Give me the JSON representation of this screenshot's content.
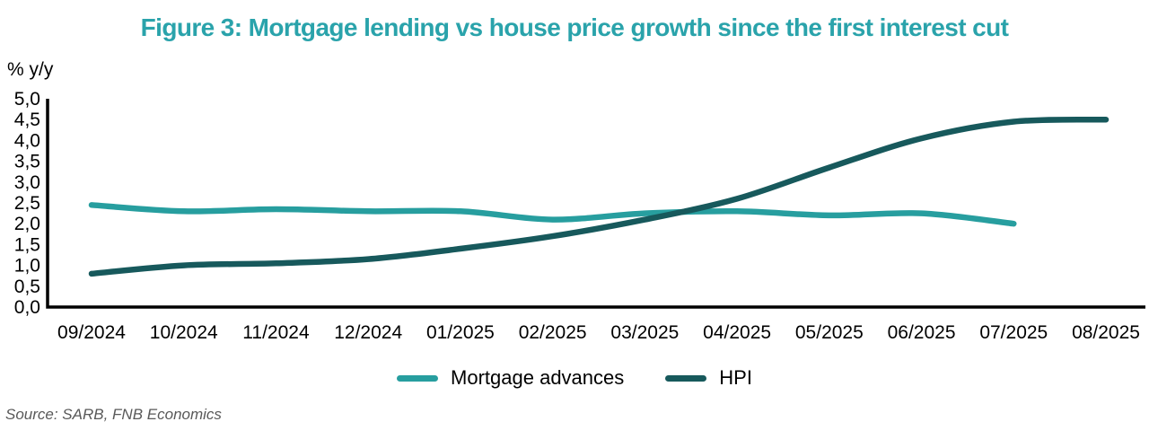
{
  "page": {
    "source_note": "Source: SARB, FNB Economics"
  },
  "colors": {
    "title_teal": "#2aa3ab",
    "mortgage_line": "#279e9f",
    "hpi_line": "#17595c",
    "axis_black": "#000000",
    "source_gray": "#595959"
  },
  "chart_data": {
    "type": "line",
    "title": "Figure 3: Mortgage lending vs house price growth since the first interest cut",
    "ylabel": "% y/y",
    "xlabel": "",
    "ylim": [
      0,
      5
    ],
    "ytick_step": 0.5,
    "decimal_separator": ",",
    "grid": false,
    "legend_position": "bottom",
    "yticks": [
      {
        "label": "0,0",
        "value": 0.0
      },
      {
        "label": "0,5",
        "value": 0.5
      },
      {
        "label": "1,0",
        "value": 1.0
      },
      {
        "label": "1,5",
        "value": 1.5
      },
      {
        "label": "2,0",
        "value": 2.0
      },
      {
        "label": "2,5",
        "value": 2.5
      },
      {
        "label": "3,0",
        "value": 3.0
      },
      {
        "label": "3,5",
        "value": 3.5
      },
      {
        "label": "4,0",
        "value": 4.0
      },
      {
        "label": "4,5",
        "value": 4.5
      },
      {
        "label": "5,0",
        "value": 5.0
      }
    ],
    "categories": [
      "09/2024",
      "10/2024",
      "11/2024",
      "12/2024",
      "01/2025",
      "02/2025",
      "03/2025",
      "04/2025",
      "05/2025",
      "06/2025",
      "07/2025",
      "08/2025"
    ],
    "series": [
      {
        "name": "Mortgage advances",
        "color": "#279e9f",
        "values": [
          2.45,
          2.3,
          2.35,
          2.3,
          2.3,
          2.1,
          2.25,
          2.3,
          2.2,
          2.25,
          2.0
        ]
      },
      {
        "name": "HPI",
        "color": "#17595c",
        "values": [
          0.8,
          1.0,
          1.05,
          1.15,
          1.4,
          1.7,
          2.1,
          2.6,
          3.35,
          4.05,
          4.45,
          4.5
        ]
      }
    ]
  }
}
